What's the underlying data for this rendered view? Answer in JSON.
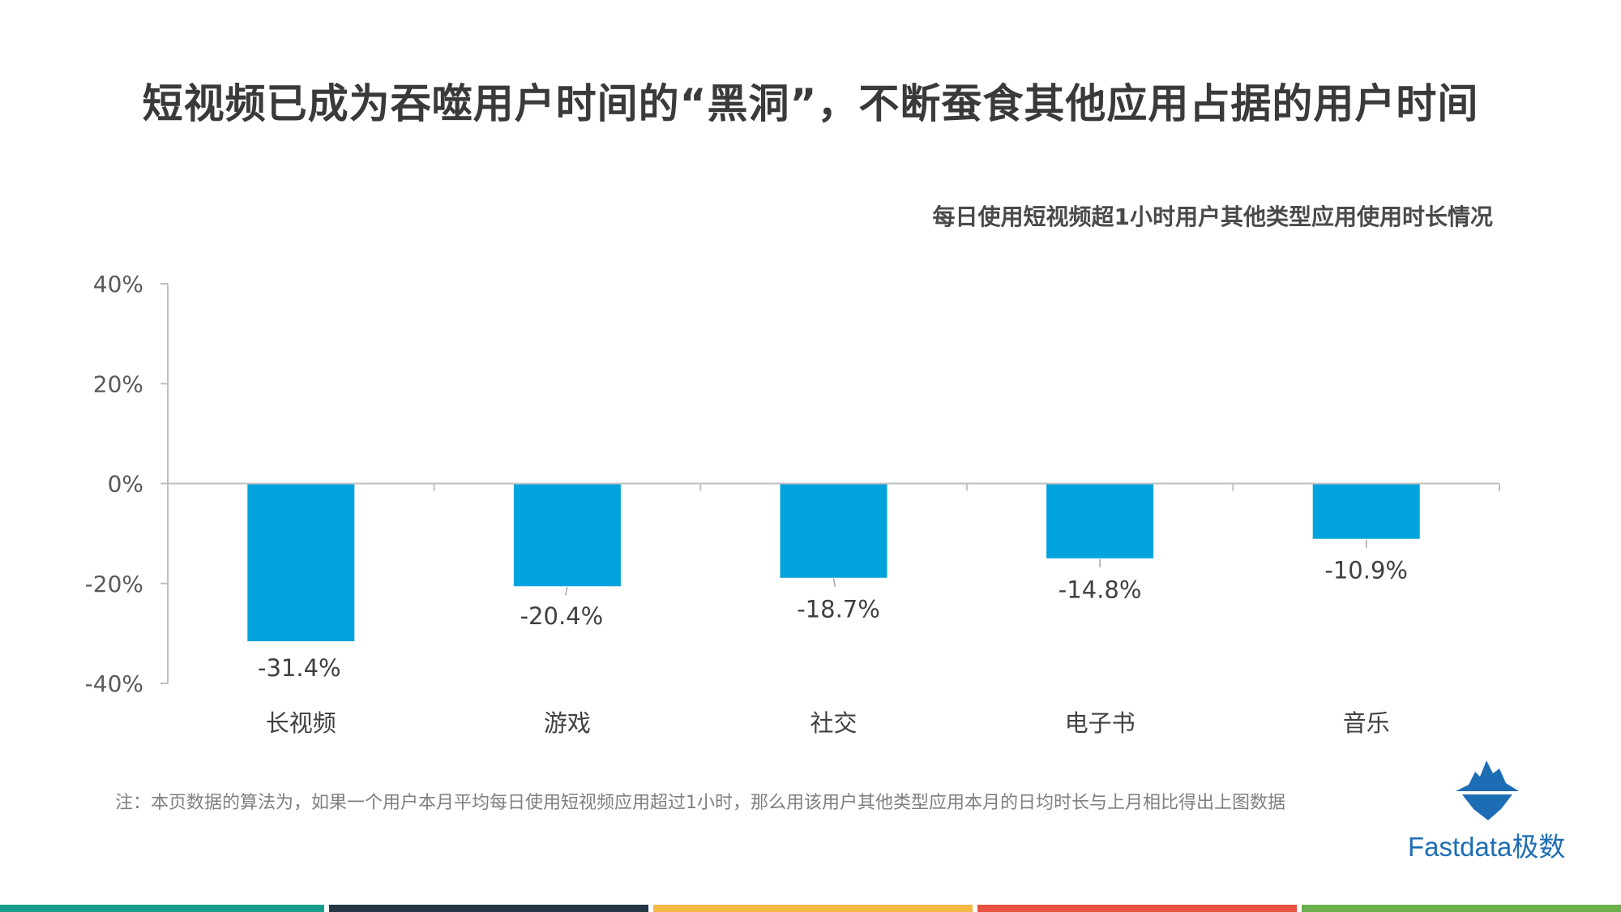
{
  "page": {
    "title": "短视频已成为吞噬用户时间的“黑洞”，不断蚕食其他应用占据的用户时间",
    "subtitle": "每日使用短视频超1小时用户其他类型应用使用时长情况",
    "note": "注：本页数据的算法为，如果一个用户本月平均每日使用短视频应用超过1小时，那么用该用户其他类型应用本月的日均时长与上月相比得出上图数据",
    "logo_text": "Fastdata极数"
  },
  "colors": {
    "bar": "#00a3dc",
    "axis": "#bfbfbf",
    "stripes": [
      "#1a9c8c",
      "#243645",
      "#f4b942",
      "#e8503f",
      "#6ab04c"
    ]
  },
  "chart_data": {
    "type": "bar",
    "categories": [
      "长视频",
      "游戏",
      "社交",
      "电子书",
      "音乐"
    ],
    "values": [
      -31.4,
      -20.4,
      -18.7,
      -14.8,
      -10.9
    ],
    "data_labels": [
      "-31.4%",
      "-20.4%",
      "-18.7%",
      "-14.8%",
      "-10.9%"
    ],
    "title": "每日使用短视频超1小时用户其他类型应用使用时长情况",
    "xlabel": "",
    "ylabel": "",
    "ylim": [
      -40,
      40
    ],
    "yticks": [
      40,
      20,
      0,
      -20,
      -40
    ],
    "ytick_labels": [
      "40%",
      "20%",
      "0%",
      "-20%",
      "-40%"
    ],
    "grid": false
  }
}
